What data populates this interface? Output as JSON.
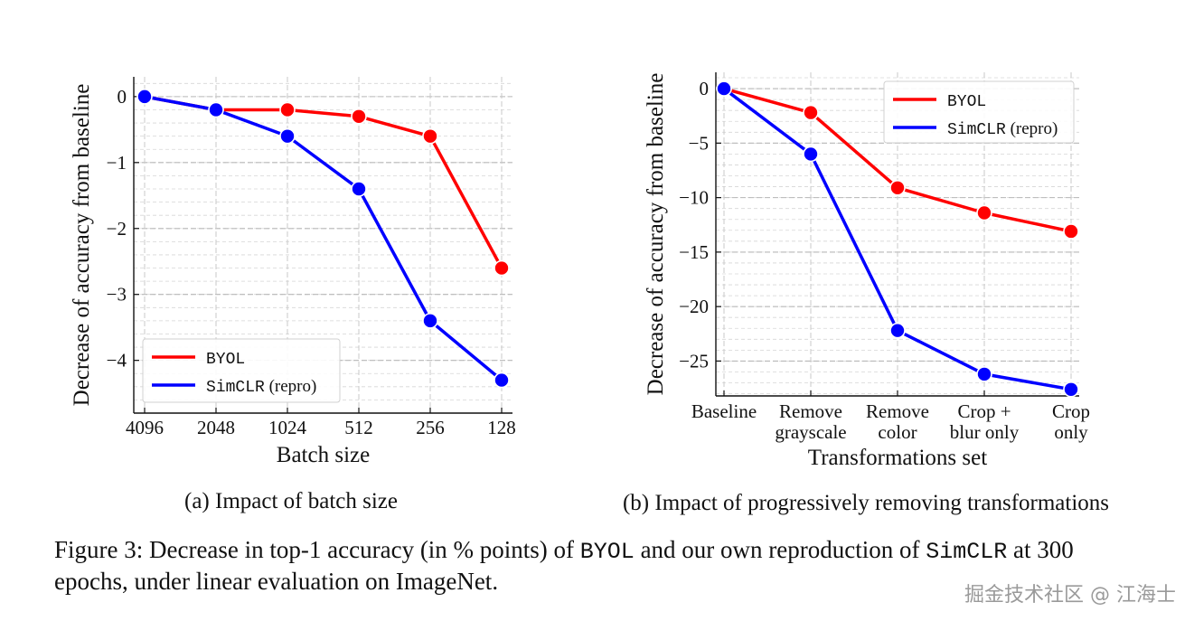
{
  "chart_data": [
    {
      "type": "line",
      "subcaption": "(a) Impact of batch size",
      "xlabel": "Batch size",
      "ylabel": "Decrease of accuracy from baseline",
      "categories": [
        "4096",
        "2048",
        "1024",
        "512",
        "256",
        "128"
      ],
      "ylim": [
        -4.8,
        0.3
      ],
      "yticks": [
        0,
        -1,
        -2,
        -3,
        -4
      ],
      "ytick_labels": [
        "0",
        "−1",
        "−2",
        "−3",
        "−4"
      ],
      "grid": true,
      "legend_position": "lower-left",
      "series": [
        {
          "name": "BYOL",
          "name_mono": true,
          "color": "#ff0000",
          "values": [
            0,
            -0.2,
            -0.2,
            -0.3,
            -0.6,
            -2.6
          ]
        },
        {
          "name": "SimCLR",
          "name_mono": true,
          "name_suffix": " (repro)",
          "color": "#0000ff",
          "values": [
            0,
            -0.2,
            -0.6,
            -1.4,
            -3.4,
            -4.3
          ]
        }
      ]
    },
    {
      "type": "line",
      "subcaption": "(b) Impact of progressively removing transformations",
      "xlabel": "Transformations set",
      "ylabel": "Decrease of accuracy from baseline",
      "categories": [
        [
          "Baseline"
        ],
        [
          "Remove",
          "grayscale"
        ],
        [
          "Remove",
          "color"
        ],
        [
          "Crop +",
          "blur only"
        ],
        [
          "Crop",
          "only"
        ]
      ],
      "ylim": [
        -28.2,
        1.5
      ],
      "yticks": [
        0,
        -5,
        -10,
        -15,
        -20,
        -25
      ],
      "ytick_labels": [
        "0",
        "−5",
        "−10",
        "−15",
        "−20",
        "−25"
      ],
      "grid": true,
      "legend_position": "upper-right",
      "series": [
        {
          "name": "BYOL",
          "name_mono": true,
          "color": "#ff0000",
          "values": [
            0,
            -2.2,
            -9.1,
            -11.4,
            -13.1
          ]
        },
        {
          "name": "SimCLR",
          "name_mono": true,
          "name_suffix": " (repro)",
          "color": "#0000ff",
          "values": [
            0,
            -6.0,
            -22.2,
            -26.2,
            -27.6
          ]
        }
      ]
    }
  ],
  "caption": {
    "part1": "Figure 3: Decrease in top-1 accuracy (in % points) of ",
    "byol": "BYOL",
    "part2": " and our own reproduction of ",
    "simclr": "SimCLR",
    "part3": " at 300 epochs, under linear evaluation on ImageNet."
  },
  "watermark": "掘金技术社区 @ 江海士"
}
